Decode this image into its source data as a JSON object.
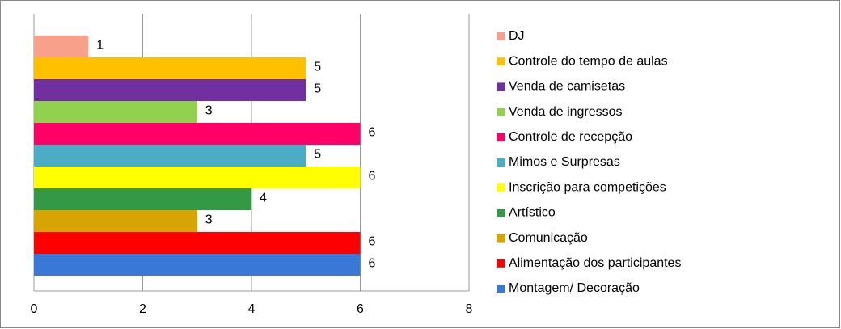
{
  "chart_data": {
    "type": "bar",
    "orientation": "horizontal",
    "series": [
      {
        "name": "DJ",
        "color": "#f9a08a",
        "values": [
          1
        ]
      },
      {
        "name": "Controle do tempo de aulas",
        "color": "#ffc000",
        "values": [
          5
        ]
      },
      {
        "name": "Venda de camisetas",
        "color": "#7030a0",
        "values": [
          5
        ]
      },
      {
        "name": "Venda de ingressos",
        "color": "#92d050",
        "values": [
          3
        ]
      },
      {
        "name": "Controle de recepção",
        "color": "#ff0066",
        "values": [
          6
        ]
      },
      {
        "name": "Mimos e Surpresas",
        "color": "#4bacc6",
        "values": [
          5
        ]
      },
      {
        "name": "Inscrição para competições",
        "color": "#ffff00",
        "values": [
          6
        ]
      },
      {
        "name": "Artístico",
        "color": "#339944",
        "values": [
          4
        ]
      },
      {
        "name": "Comunicação",
        "color": "#d9a300",
        "values": [
          3
        ]
      },
      {
        "name": "Alimentação dos participantes",
        "color": "#ff0000",
        "values": [
          6
        ]
      },
      {
        "name": "Montagem/ Decoração",
        "color": "#3a78d8",
        "values": [
          6
        ]
      }
    ],
    "xlim": [
      0,
      8
    ],
    "xticks": [
      0,
      2,
      4,
      6,
      8
    ],
    "grid": true,
    "legend": "right"
  }
}
